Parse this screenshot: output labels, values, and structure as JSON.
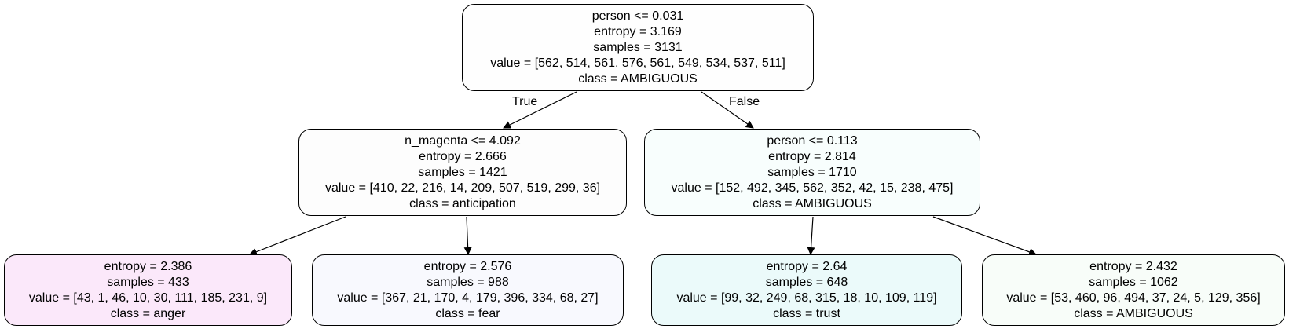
{
  "tree": {
    "root": {
      "condition": "person <= 0.031",
      "entropy": "entropy = 3.169",
      "samples": "samples = 3131",
      "value": "value = [562, 514, 561, 576, 561, 549, 534, 537, 511]",
      "class": "class = AMBIGUOUS",
      "fill": "#fefefe"
    },
    "left": {
      "condition": "n_magenta <= 4.092",
      "entropy": "entropy = 2.666",
      "samples": "samples = 1421",
      "value": "value = [410, 22, 216, 14, 209, 507, 519, 299, 36]",
      "class": "class = anticipation",
      "fill": "#fdfdfd"
    },
    "right": {
      "condition": "person <= 0.113",
      "entropy": "entropy = 2.814",
      "samples": "samples = 1710",
      "value": "value = [152, 492, 345, 562, 352, 42, 15, 238, 475]",
      "class": "class = AMBIGUOUS",
      "fill": "#f8fefd"
    },
    "leaf_anger": {
      "entropy": "entropy = 2.386",
      "samples": "samples = 433",
      "value": "value = [43, 1, 46, 10, 30, 111, 185, 231, 9]",
      "class": "class = anger",
      "fill": "#fbe8fa"
    },
    "leaf_fear": {
      "entropy": "entropy = 2.576",
      "samples": "samples = 988",
      "value": "value = [367, 21, 170, 4, 179, 396, 334, 68, 27]",
      "class": "class = fear",
      "fill": "#f8f9fe"
    },
    "leaf_trust": {
      "entropy": "entropy = 2.64",
      "samples": "samples = 648",
      "value": "value = [99, 32, 249, 68, 315, 18, 10, 109, 119]",
      "class": "class = trust",
      "fill": "#ebfafa"
    },
    "leaf_ambiguous": {
      "entropy": "entropy = 2.432",
      "samples": "samples = 1062",
      "value": "value = [53, 460, 96, 494, 37, 24, 5, 129, 356]",
      "class": "class = AMBIGUOUS",
      "fill": "#f8fdf9"
    }
  },
  "edge_labels": {
    "true": "True",
    "false": "False"
  }
}
